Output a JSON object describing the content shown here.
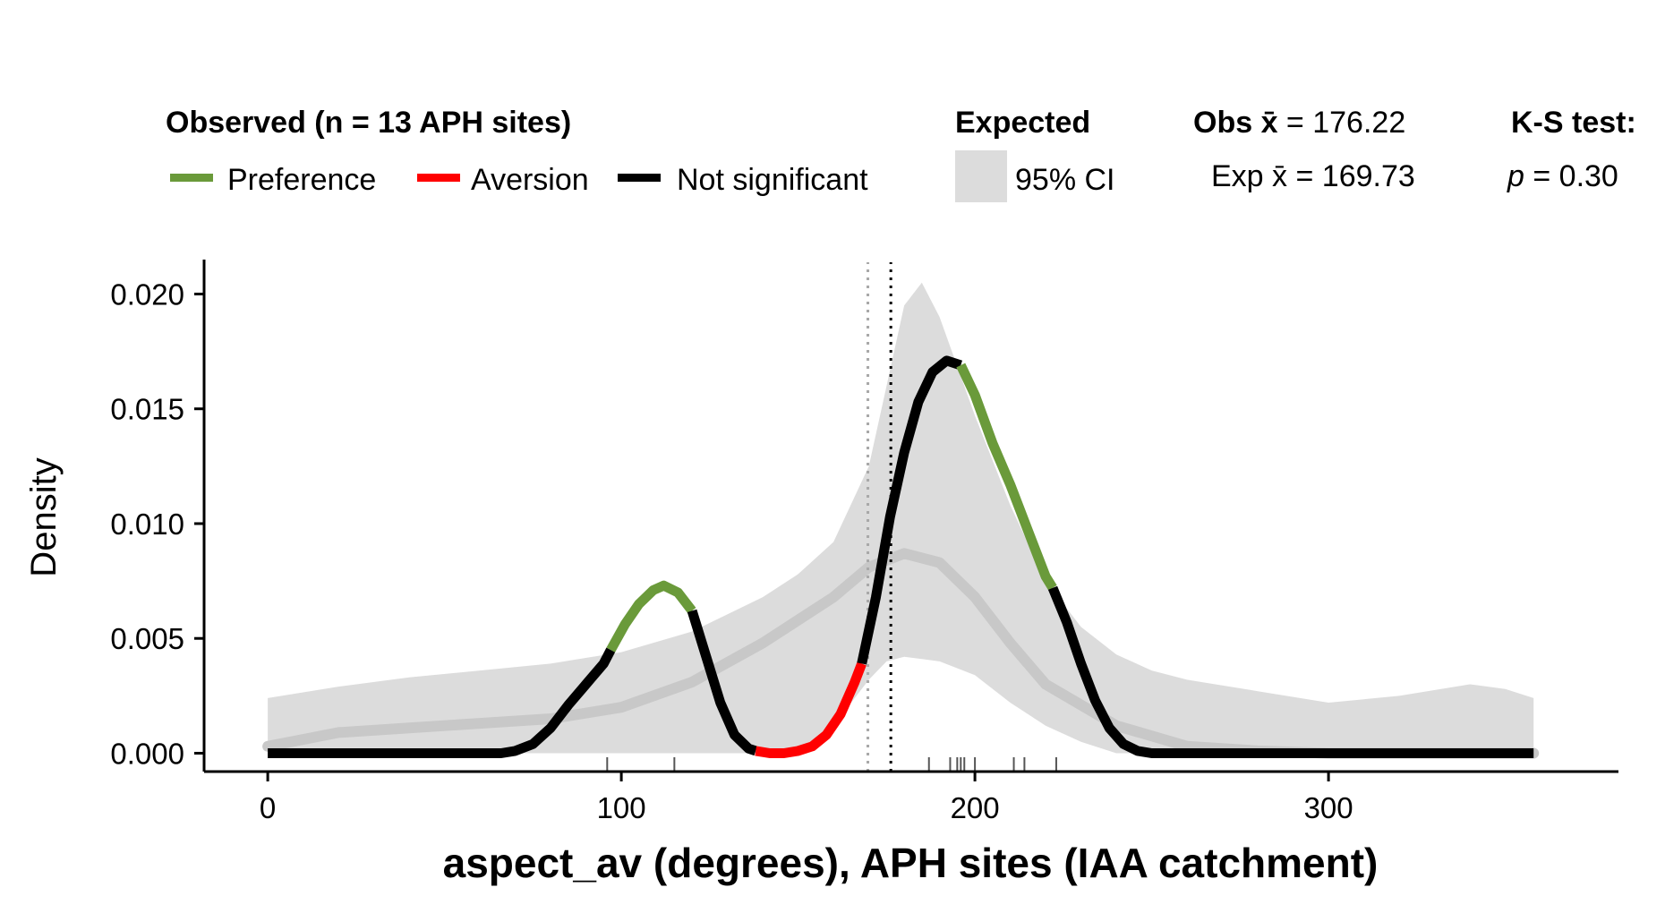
{
  "legend": {
    "observed_title": "Observed (n = 13 APH sites)",
    "preference_label": "Preference",
    "aversion_label": "Aversion",
    "not_significant_label": "Not significant",
    "expected_title": "Expected",
    "ci_label": "95% CI",
    "obs_mean_prefix": "Obs x̄",
    "obs_mean_value": " = 176.22",
    "exp_mean_text": "Exp x̄ = 169.73",
    "ks_title": "K-S test:",
    "p_symbol": "p",
    "p_value_text": " = 0.30"
  },
  "colors": {
    "preference": "#6a9a3a",
    "aversion": "#ff0000",
    "not_significant": "#000000",
    "ci_band": "#dcdcdc",
    "expected_mean_line": "#c8c8c8",
    "obs_mean_vline": "#000000",
    "exp_mean_vline": "#a8a8a8"
  },
  "chart_data": {
    "type": "area",
    "xlabel": "aspect_av (degrees), APH sites (IAA catchment)",
    "ylabel": "Density",
    "xlim": [
      -18,
      382
    ],
    "ylim": [
      -0.0008,
      0.0215
    ],
    "x_ticks": [
      0,
      100,
      200,
      300
    ],
    "y_ticks": [
      0.0,
      0.005,
      0.01,
      0.015,
      0.02
    ],
    "x_tick_labels": [
      "0",
      "100",
      "200",
      "300"
    ],
    "y_tick_labels": [
      "0.000",
      "0.005",
      "0.010",
      "0.015",
      "0.020"
    ],
    "grid": false,
    "legend_position": "top",
    "obs_mean": 176.22,
    "exp_mean": 169.73,
    "rug_x": [
      96,
      115,
      187,
      193,
      195,
      196,
      197,
      200,
      211,
      214,
      223
    ],
    "expected_ci": {
      "x": [
        0,
        20,
        40,
        60,
        80,
        100,
        120,
        140,
        150,
        160,
        170,
        175,
        180,
        185,
        190,
        200,
        210,
        220,
        230,
        240,
        250,
        260,
        280,
        300,
        320,
        340,
        350,
        358
      ],
      "upper": [
        0.0024,
        0.0029,
        0.0033,
        0.0036,
        0.0039,
        0.0044,
        0.0053,
        0.0068,
        0.0078,
        0.0092,
        0.0125,
        0.016,
        0.0195,
        0.0205,
        0.019,
        0.0147,
        0.0108,
        0.0075,
        0.0055,
        0.0043,
        0.0036,
        0.0032,
        0.0027,
        0.0022,
        0.0025,
        0.003,
        0.0028,
        0.0024
      ],
      "lower": [
        0.0,
        0.0,
        0.0,
        0.0,
        0.0,
        0.0,
        0.0,
        0.0,
        0.0,
        0.0012,
        0.0032,
        0.004,
        0.0042,
        0.0041,
        0.004,
        0.0034,
        0.0022,
        0.0012,
        0.0005,
        0.0,
        0.0,
        0.0,
        0.0,
        0.0,
        0.0,
        0.0,
        0.0,
        0.0
      ]
    },
    "expected_mean": {
      "x": [
        0,
        10,
        20,
        40,
        60,
        80,
        100,
        120,
        140,
        160,
        170,
        180,
        190,
        200,
        210,
        220,
        240,
        260,
        280,
        300,
        320,
        340,
        358
      ],
      "y": [
        0.0003,
        0.0006,
        0.0009,
        0.0011,
        0.0013,
        0.0015,
        0.002,
        0.0031,
        0.0048,
        0.0068,
        0.0081,
        0.0087,
        0.0083,
        0.0068,
        0.0048,
        0.003,
        0.0012,
        0.0003,
        0.0001,
        0.0,
        0.0,
        0.0,
        0.0
      ]
    },
    "series": [
      {
        "name": "Not significant",
        "color_key": "not_significant",
        "x": [
          0,
          20,
          40,
          60,
          66,
          70,
          75,
          80,
          85,
          90,
          95,
          97
        ],
        "y": [
          0.0,
          0.0,
          0.0,
          0.0,
          0.0,
          0.0001,
          0.0004,
          0.0011,
          0.0021,
          0.003,
          0.0039,
          0.0045
        ]
      },
      {
        "name": "Preference",
        "color_key": "preference",
        "x": [
          97,
          101,
          105,
          109,
          112,
          116,
          120
        ],
        "y": [
          0.0045,
          0.0056,
          0.0065,
          0.0071,
          0.0073,
          0.007,
          0.0062
        ]
      },
      {
        "name": "Not significant",
        "color_key": "not_significant",
        "x": [
          120,
          124,
          128,
          132,
          136,
          138
        ],
        "y": [
          0.0062,
          0.0042,
          0.0022,
          0.0008,
          0.0002,
          0.0001
        ]
      },
      {
        "name": "Aversion",
        "color_key": "aversion",
        "x": [
          138,
          142,
          146,
          150,
          154,
          158,
          162,
          166,
          168
        ],
        "y": [
          0.0001,
          0.0,
          0.0,
          0.0001,
          0.0003,
          0.0008,
          0.0017,
          0.0031,
          0.0039
        ]
      },
      {
        "name": "Not significant",
        "color_key": "not_significant",
        "x": [
          168,
          172,
          176,
          180,
          184,
          188,
          192,
          196
        ],
        "y": [
          0.0039,
          0.0068,
          0.0103,
          0.0131,
          0.0153,
          0.0166,
          0.0171,
          0.0169
        ]
      },
      {
        "name": "Preference",
        "color_key": "preference",
        "x": [
          196,
          200,
          205,
          210,
          215,
          220,
          222
        ],
        "y": [
          0.0169,
          0.0156,
          0.0135,
          0.0117,
          0.0097,
          0.0077,
          0.0072
        ]
      },
      {
        "name": "Not significant",
        "color_key": "not_significant",
        "x": [
          222,
          226,
          230,
          234,
          238,
          242,
          246,
          250,
          254,
          260,
          280,
          300,
          320,
          340,
          358
        ],
        "y": [
          0.0072,
          0.0057,
          0.0039,
          0.0023,
          0.0011,
          0.0004,
          0.0001,
          0.0,
          0.0,
          0.0,
          0.0,
          0.0,
          0.0,
          0.0,
          0.0
        ]
      }
    ]
  }
}
